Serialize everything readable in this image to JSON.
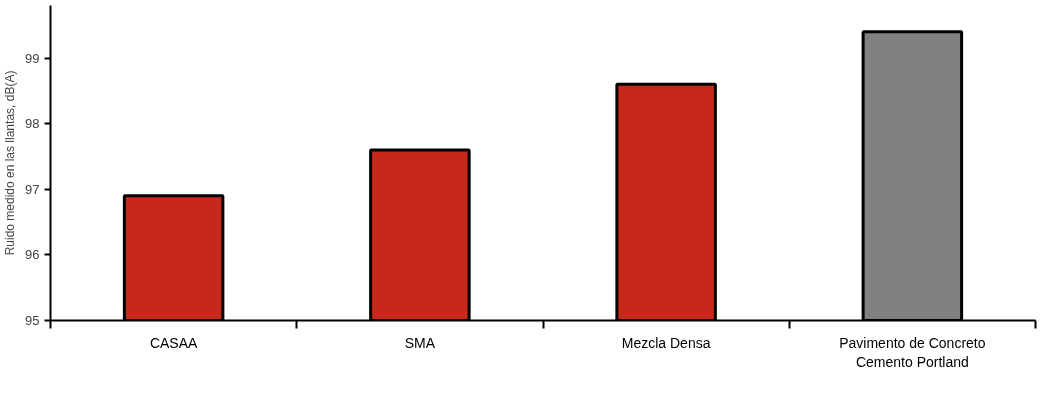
{
  "chart_data": {
    "type": "bar",
    "ylabel": "Ruido medido en las llantas, dB(A)",
    "categories": [
      "CASAA",
      "SMA",
      "Mezcla Densa",
      "Pavimento de Concreto\nCemento Portland"
    ],
    "values": [
      96.9,
      97.6,
      98.6,
      99.4
    ],
    "colors": [
      "#c8281c",
      "#c8281c",
      "#c8281c",
      "#808080"
    ],
    "ylim": [
      95,
      99.8
    ],
    "yticks": [
      95,
      96,
      97,
      98,
      99
    ],
    "grid": false
  }
}
